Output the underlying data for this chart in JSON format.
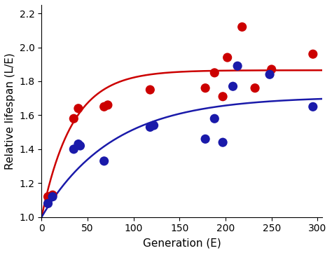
{
  "title": "",
  "xlabel": "Generation (E)",
  "ylabel": "Relative lifespan (L/E)",
  "xlim": [
    0,
    305
  ],
  "ylim": [
    1.0,
    2.25
  ],
  "xticks": [
    0,
    50,
    100,
    150,
    200,
    250,
    300
  ],
  "yticks": [
    1.0,
    1.2,
    1.4,
    1.6,
    1.8,
    2.0,
    2.2
  ],
  "red_dots": [
    [
      7,
      1.12
    ],
    [
      12,
      1.13
    ],
    [
      35,
      1.58
    ],
    [
      40,
      1.64
    ],
    [
      68,
      1.65
    ],
    [
      72,
      1.66
    ],
    [
      118,
      1.75
    ],
    [
      178,
      1.76
    ],
    [
      188,
      1.85
    ],
    [
      197,
      1.71
    ],
    [
      202,
      1.94
    ],
    [
      218,
      2.12
    ],
    [
      232,
      1.76
    ],
    [
      250,
      1.87
    ],
    [
      295,
      1.96
    ]
  ],
  "blue_dots": [
    [
      7,
      1.08
    ],
    [
      12,
      1.12
    ],
    [
      35,
      1.4
    ],
    [
      40,
      1.43
    ],
    [
      42,
      1.42
    ],
    [
      68,
      1.33
    ],
    [
      118,
      1.53
    ],
    [
      122,
      1.54
    ],
    [
      178,
      1.46
    ],
    [
      188,
      1.58
    ],
    [
      197,
      1.44
    ],
    [
      208,
      1.77
    ],
    [
      213,
      1.89
    ],
    [
      248,
      1.84
    ],
    [
      295,
      1.65
    ]
  ],
  "red_asymptote": 1.865,
  "red_rate": 0.03,
  "blue_asymptote": 1.71,
  "blue_rate": 0.013,
  "red_curve_color": "#cc0000",
  "blue_curve_color": "#1a1aaa",
  "dot_size": 90,
  "line_width": 1.8,
  "bg_color": "#ffffff",
  "font_size_label": 11,
  "font_size_tick": 10
}
